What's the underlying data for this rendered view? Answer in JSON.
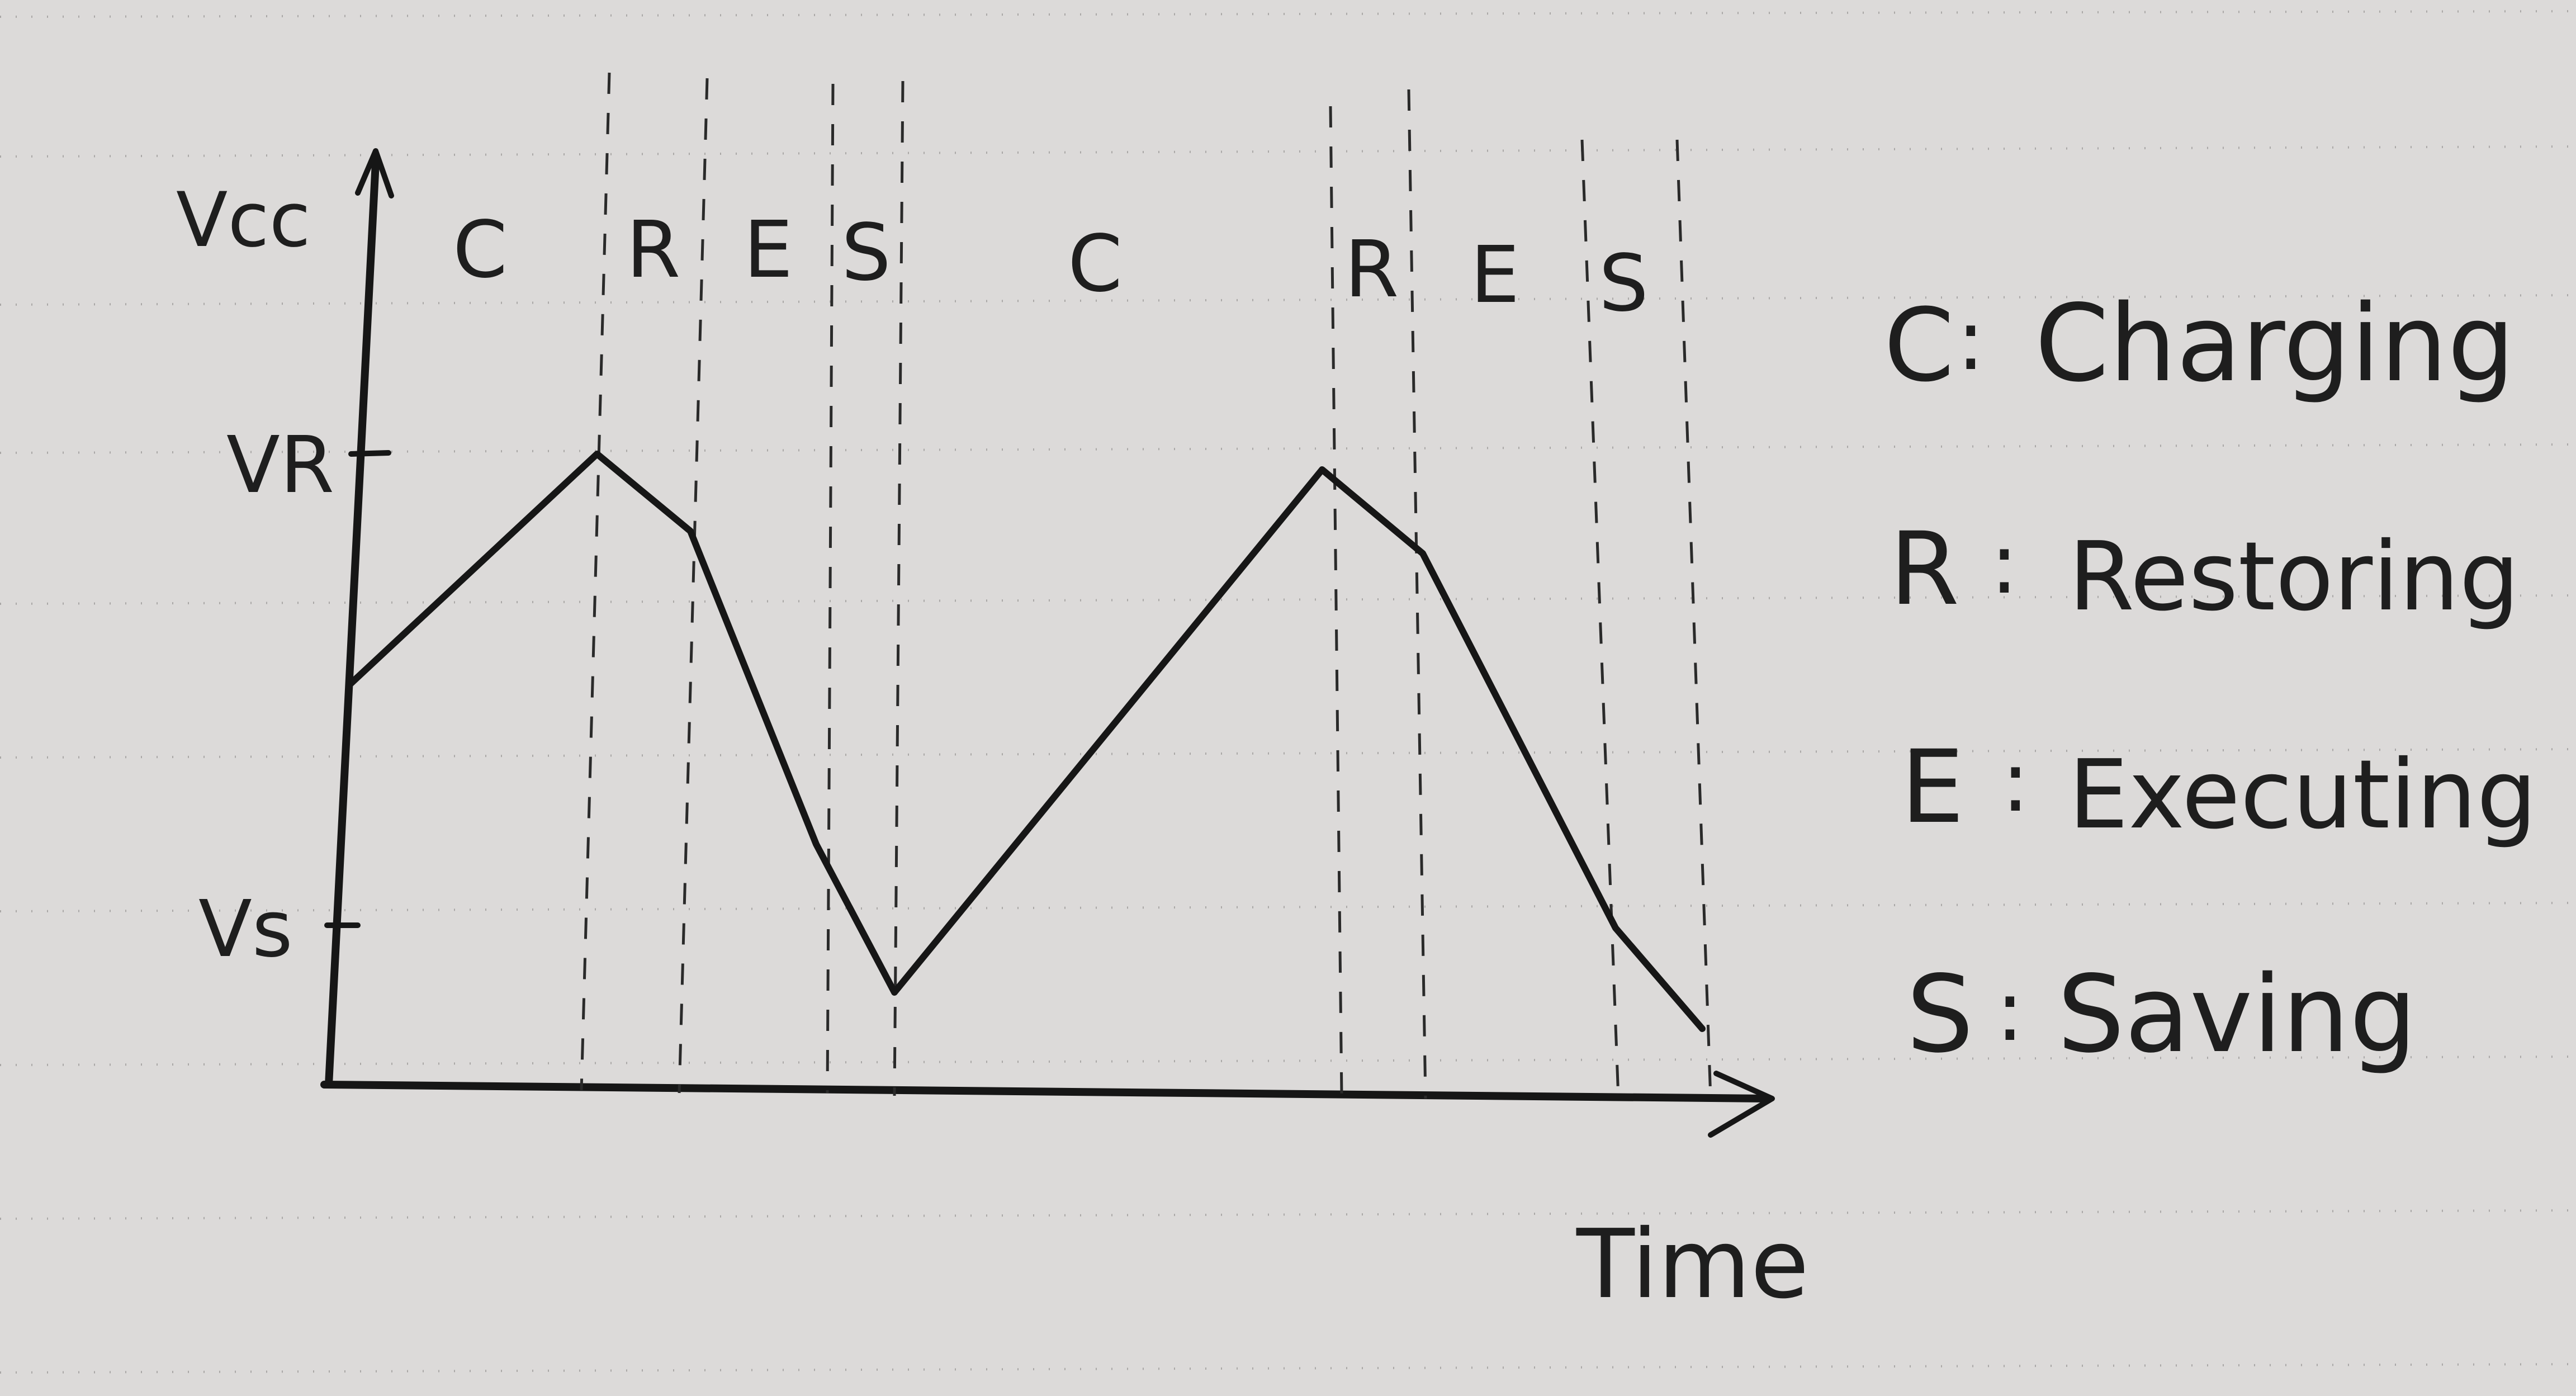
{
  "diagram": {
    "y_axis": {
      "label": "Vcc",
      "ticks": [
        {
          "id": "vr",
          "label": "VR"
        },
        {
          "id": "vs",
          "label": "Vs"
        }
      ]
    },
    "x_axis": {
      "label": "Time"
    },
    "phases": [
      "C",
      "R",
      "E",
      "S",
      "C",
      "R",
      "E",
      "S"
    ],
    "legend": [
      {
        "key": "C",
        "sep": ":",
        "text": "Charging"
      },
      {
        "key": "R",
        "sep": ":",
        "text": "Restoring"
      },
      {
        "key": "E",
        "sep": ":",
        "text": "Executing"
      },
      {
        "key": "S",
        "sep": ":",
        "text": "Saving"
      }
    ],
    "colors": {
      "ink": "#161616",
      "paper": "#dcdad9",
      "ruling": "#a9a7a6"
    }
  }
}
